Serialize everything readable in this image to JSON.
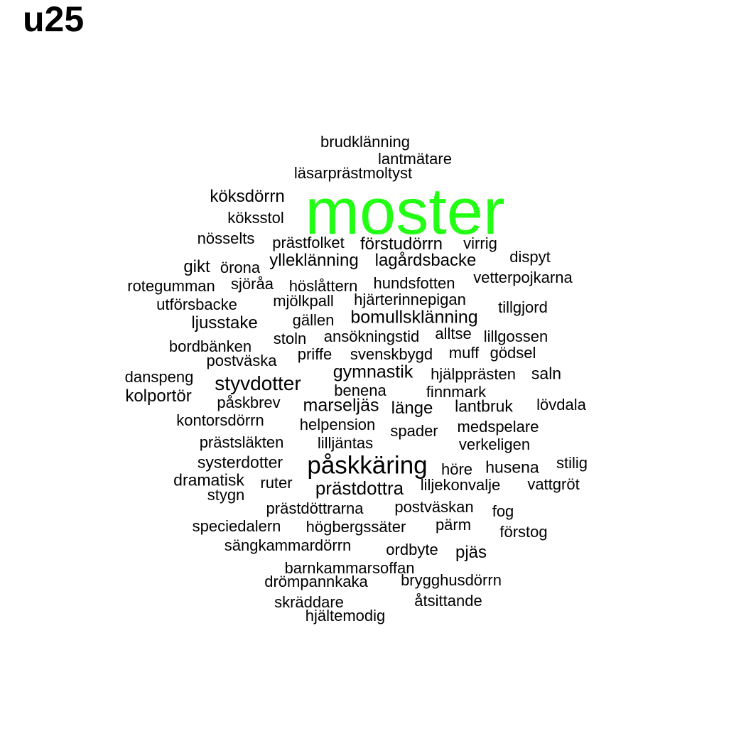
{
  "title": "u25",
  "colors": {
    "highlight": "#22ff14",
    "text": "#000000",
    "background": "#ffffff"
  },
  "words": [
    {
      "text": "moster",
      "highlight": true
    },
    {
      "text": "påskkäring"
    },
    {
      "text": "styvdotter"
    },
    {
      "text": "prästdottra"
    },
    {
      "text": "marseljäs"
    },
    {
      "text": "gymnastik"
    },
    {
      "text": "bomullsklänning"
    },
    {
      "text": "köksdörrn"
    },
    {
      "text": "ljusstake"
    },
    {
      "text": "kolportör"
    },
    {
      "text": "lagårdsbacke"
    },
    {
      "text": "ylleklänning"
    },
    {
      "text": "förstudörrn"
    },
    {
      "text": "gikt"
    },
    {
      "text": "pjäs"
    },
    {
      "text": "länge"
    },
    {
      "text": "husena"
    },
    {
      "text": "saln"
    },
    {
      "text": "lantbruk"
    },
    {
      "text": "dramatisk"
    },
    {
      "text": "systerdotter"
    },
    {
      "text": "lantmätare"
    },
    {
      "text": "brudklänning"
    },
    {
      "text": "läsarprästmoltyst"
    },
    {
      "text": "köksstol"
    },
    {
      "text": "nösselts"
    },
    {
      "text": "prästfolket"
    },
    {
      "text": "virrig"
    },
    {
      "text": "dispyt"
    },
    {
      "text": "örona"
    },
    {
      "text": "rotegumman"
    },
    {
      "text": "sjöråa"
    },
    {
      "text": "höslåttern"
    },
    {
      "text": "hundsfotten"
    },
    {
      "text": "vetterpojkarna"
    },
    {
      "text": "utförsbacke"
    },
    {
      "text": "mjölkpall"
    },
    {
      "text": "hjärterinnepigan"
    },
    {
      "text": "tillgjord"
    },
    {
      "text": "gällen"
    },
    {
      "text": "alltse"
    },
    {
      "text": "stoln"
    },
    {
      "text": "ansökningstid"
    },
    {
      "text": "lillgossen"
    },
    {
      "text": "bordbänken"
    },
    {
      "text": "priffe"
    },
    {
      "text": "svenskbygd"
    },
    {
      "text": "muff"
    },
    {
      "text": "gödsel"
    },
    {
      "text": "postväska"
    },
    {
      "text": "danspeng"
    },
    {
      "text": "hjälpprästen"
    },
    {
      "text": "benena"
    },
    {
      "text": "finnmark"
    },
    {
      "text": "påskbrev"
    },
    {
      "text": "lövdala"
    },
    {
      "text": "kontorsdörrn"
    },
    {
      "text": "helpension"
    },
    {
      "text": "spader"
    },
    {
      "text": "medspelare"
    },
    {
      "text": "prästsläkten"
    },
    {
      "text": "lilljäntas"
    },
    {
      "text": "verkeligen"
    },
    {
      "text": "stilig"
    },
    {
      "text": "höre"
    },
    {
      "text": "ruter"
    },
    {
      "text": "liljekonvalje"
    },
    {
      "text": "vattgröt"
    },
    {
      "text": "stygn"
    },
    {
      "text": "prästdöttrarna"
    },
    {
      "text": "postväskan"
    },
    {
      "text": "fog"
    },
    {
      "text": "speciedalern"
    },
    {
      "text": "högbergssäter"
    },
    {
      "text": "pärm"
    },
    {
      "text": "förstog"
    },
    {
      "text": "sängkammardörrn"
    },
    {
      "text": "ordbyte"
    },
    {
      "text": "barnkammarsoffan"
    },
    {
      "text": "drömpannkaka"
    },
    {
      "text": "brygghusdörrn"
    },
    {
      "text": "skräddare"
    },
    {
      "text": "åtsittande"
    },
    {
      "text": "hjältemodig"
    }
  ]
}
